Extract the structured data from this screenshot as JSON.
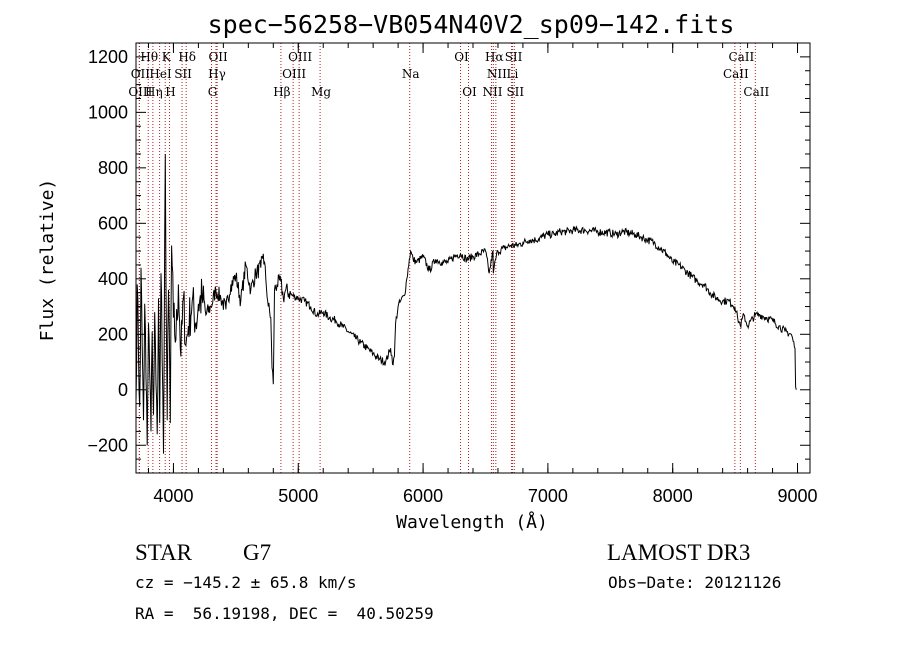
{
  "chart_data": {
    "type": "line",
    "title": "spec−56258−VB054N40V2_sp09−142.fits",
    "xlabel": "Wavelength (Å)",
    "ylabel": "Flux (relative)",
    "xlim": [
      3700,
      9100
    ],
    "ylim": [
      -300,
      1250
    ],
    "x_ticks": [
      4000,
      5000,
      6000,
      7000,
      8000,
      9000
    ],
    "y_ticks": [
      -200,
      0,
      200,
      400,
      600,
      800,
      1000,
      1200
    ],
    "y_tick_labels": [
      "−200",
      "0",
      "200",
      "400",
      "600",
      "800",
      "1000",
      "1200"
    ],
    "grid": false,
    "series": [
      {
        "name": "spectrum",
        "color": "#000000",
        "x": [
          3700,
          3710,
          3720,
          3730,
          3740,
          3750,
          3760,
          3770,
          3780,
          3790,
          3800,
          3810,
          3820,
          3830,
          3840,
          3850,
          3860,
          3870,
          3880,
          3890,
          3900,
          3910,
          3920,
          3930,
          3935,
          3940,
          3950,
          3960,
          3968,
          3975,
          3985,
          4000,
          4020,
          4040,
          4060,
          4080,
          4100,
          4120,
          4150,
          4180,
          4200,
          4230,
          4260,
          4300,
          4340,
          4380,
          4420,
          4460,
          4500,
          4540,
          4580,
          4620,
          4660,
          4700,
          4720,
          4740,
          4760,
          4780,
          4790,
          4800,
          4810,
          4830,
          4860,
          4880,
          4900,
          4950,
          5000,
          5050,
          5100,
          5150,
          5200,
          5250,
          5300,
          5350,
          5400,
          5450,
          5500,
          5550,
          5600,
          5650,
          5700,
          5740,
          5760,
          5770,
          5780,
          5800,
          5820,
          5850,
          5870,
          5890,
          5900,
          5920,
          5950,
          6000,
          6050,
          6100,
          6150,
          6200,
          6250,
          6300,
          6350,
          6400,
          6450,
          6500,
          6530,
          6560,
          6563,
          6580,
          6600,
          6650,
          6700,
          6750,
          6800,
          6850,
          6900,
          6950,
          7000,
          7050,
          7100,
          7150,
          7200,
          7300,
          7400,
          7500,
          7550,
          7600,
          7700,
          7750,
          7800,
          7850,
          7900,
          7950,
          8000,
          8050,
          8100,
          8150,
          8200,
          8250,
          8300,
          8350,
          8400,
          8450,
          8498,
          8520,
          8542,
          8570,
          8600,
          8662,
          8700,
          8750,
          8800,
          8850,
          8900,
          8950,
          8980,
          8985,
          8990
        ],
        "values": [
          -40,
          380,
          120,
          -60,
          440,
          160,
          -110,
          310,
          40,
          -200,
          240,
          60,
          -150,
          210,
          -90,
          280,
          20,
          -160,
          330,
          -120,
          420,
          100,
          -230,
          560,
          850,
          380,
          -110,
          360,
          150,
          -120,
          520,
          260,
          180,
          380,
          120,
          330,
          160,
          230,
          320,
          240,
          310,
          330,
          270,
          300,
          360,
          330,
          290,
          380,
          410,
          320,
          450,
          360,
          420,
          440,
          490,
          400,
          300,
          260,
          80,
          20,
          360,
          380,
          390,
          330,
          360,
          340,
          330,
          320,
          300,
          270,
          280,
          260,
          250,
          230,
          210,
          190,
          170,
          150,
          130,
          110,
          100,
          150,
          90,
          120,
          240,
          300,
          320,
          340,
          400,
          470,
          500,
          470,
          460,
          480,
          430,
          470,
          460,
          460,
          480,
          490,
          470,
          480,
          490,
          500,
          420,
          500,
          420,
          470,
          500,
          510,
          520,
          520,
          530,
          540,
          540,
          550,
          560,
          560,
          570,
          570,
          575,
          575,
          570,
          565,
          560,
          570,
          560,
          550,
          540,
          530,
          510,
          490,
          460,
          450,
          430,
          410,
          390,
          380,
          350,
          330,
          320,
          320,
          300,
          260,
          230,
          270,
          230,
          270,
          270,
          260,
          250,
          230,
          210,
          200,
          150,
          10,
          0
        ]
      }
    ],
    "spectral_lines": [
      {
        "label": "Hθ",
        "x": 3798,
        "row": 0
      },
      {
        "label": "K",
        "x": 3934,
        "row": 0
      },
      {
        "label": "Hδ",
        "x": 4102,
        "row": 0
      },
      {
        "label": "OII",
        "x": 4350,
        "row": 0
      },
      {
        "label": "OIII",
        "x": 5007,
        "row": 0
      },
      {
        "label": "OI",
        "x": 6300,
        "row": 0
      },
      {
        "label": "Hα",
        "x": 6563,
        "row": 0
      },
      {
        "label": "SII",
        "x": 6717,
        "row": 0
      },
      {
        "label": "CaII",
        "x": 8542,
        "row": 0
      },
      {
        "label": "OII",
        "x": 3727,
        "row": 1
      },
      {
        "label": "HeI",
        "x": 3889,
        "row": 1
      },
      {
        "label": "SII",
        "x": 4069,
        "row": 1
      },
      {
        "label": "Hγ",
        "x": 4341,
        "row": 1
      },
      {
        "label": "OIII",
        "x": 4959,
        "row": 1
      },
      {
        "label": "Na",
        "x": 5893,
        "row": 1
      },
      {
        "label": "NII",
        "x": 6583,
        "row": 1
      },
      {
        "label": "Li",
        "x": 6708,
        "row": 1
      },
      {
        "label": "CaII",
        "x": 8498,
        "row": 1
      },
      {
        "label": "OIII",
        "x": 3727,
        "row": 2
      },
      {
        "label": "Hη",
        "x": 3835,
        "row": 2
      },
      {
        "label": "H",
        "x": 3968,
        "row": 2
      },
      {
        "label": "G",
        "x": 4305,
        "row": 2
      },
      {
        "label": "Hβ",
        "x": 4861,
        "row": 2
      },
      {
        "label": "Mg",
        "x": 5175,
        "row": 2
      },
      {
        "label": "OI",
        "x": 6364,
        "row": 2
      },
      {
        "label": "NII",
        "x": 6548,
        "row": 2
      },
      {
        "label": "SII",
        "x": 6731,
        "row": 2
      },
      {
        "label": "CaII",
        "x": 8662,
        "row": 2
      }
    ],
    "line_color": "#b22222"
  },
  "info": {
    "object_type": "STAR",
    "subclass": "G7",
    "survey": "LAMOST DR3",
    "cz": "cz = −145.2 ± 65.8 km/s",
    "obs_date": "Obs−Date: 20121126",
    "radec": "RA =  56.19198, DEC =  40.50259"
  }
}
